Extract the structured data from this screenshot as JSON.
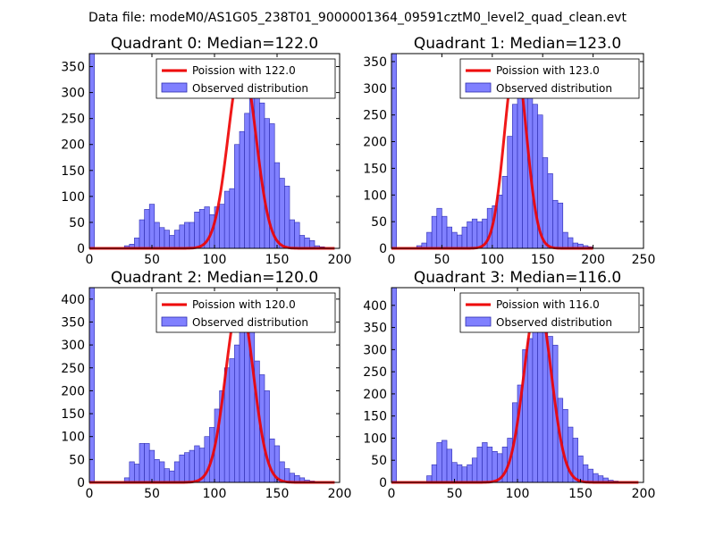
{
  "figure": {
    "suptitle": "Data file: modeM0/AS1G05_238T01_9000001364_09591cztM0_level2_quad_clean.evt"
  },
  "colors": {
    "bar_fill": "#8080ff",
    "bar_edge": "#2b2bb0",
    "curve": "#ee0000"
  },
  "chart_data": [
    {
      "type": "bar",
      "title": "Quadrant 0: Median=122.0",
      "bin_width": 4,
      "xlim": [
        0,
        200
      ],
      "ylim": [
        0,
        375
      ],
      "xticks": [
        0,
        50,
        100,
        150,
        200
      ],
      "yticks": [
        0,
        50,
        100,
        150,
        200,
        250,
        300,
        350
      ],
      "bars": [
        [
          0,
          375
        ],
        [
          28,
          5
        ],
        [
          32,
          8
        ],
        [
          36,
          20
        ],
        [
          40,
          55
        ],
        [
          44,
          75
        ],
        [
          48,
          85
        ],
        [
          52,
          50
        ],
        [
          56,
          40
        ],
        [
          60,
          35
        ],
        [
          64,
          25
        ],
        [
          68,
          35
        ],
        [
          72,
          45
        ],
        [
          76,
          50
        ],
        [
          80,
          50
        ],
        [
          84,
          70
        ],
        [
          88,
          75
        ],
        [
          92,
          80
        ],
        [
          96,
          65
        ],
        [
          100,
          80
        ],
        [
          104,
          85
        ],
        [
          108,
          110
        ],
        [
          112,
          115
        ],
        [
          116,
          200
        ],
        [
          120,
          225
        ],
        [
          124,
          260
        ],
        [
          128,
          340
        ],
        [
          132,
          345
        ],
        [
          136,
          280
        ],
        [
          140,
          250
        ],
        [
          144,
          240
        ],
        [
          148,
          165
        ],
        [
          152,
          135
        ],
        [
          156,
          120
        ],
        [
          160,
          55
        ],
        [
          164,
          50
        ],
        [
          168,
          25
        ],
        [
          172,
          20
        ],
        [
          176,
          15
        ],
        [
          180,
          5
        ],
        [
          184,
          3
        ]
      ],
      "curve": {
        "label": "Poission with 122.0",
        "mean": 122,
        "peak": 360,
        "x_range": [
          0,
          196
        ]
      },
      "legend": {
        "bar_label": "Observed distribution",
        "loc": "upper right"
      }
    },
    {
      "type": "bar",
      "title": "Quadrant 1: Median=123.0",
      "bin_width": 5,
      "xlim": [
        0,
        250
      ],
      "ylim": [
        0,
        365
      ],
      "xticks": [
        0,
        50,
        100,
        150,
        200,
        250
      ],
      "yticks": [
        0,
        50,
        100,
        150,
        200,
        250,
        300,
        350
      ],
      "bars": [
        [
          0,
          365
        ],
        [
          25,
          5
        ],
        [
          30,
          10
        ],
        [
          35,
          30
        ],
        [
          40,
          60
        ],
        [
          45,
          75
        ],
        [
          50,
          60
        ],
        [
          55,
          40
        ],
        [
          60,
          30
        ],
        [
          65,
          25
        ],
        [
          70,
          40
        ],
        [
          75,
          50
        ],
        [
          80,
          55
        ],
        [
          85,
          50
        ],
        [
          90,
          55
        ],
        [
          95,
          75
        ],
        [
          100,
          80
        ],
        [
          105,
          100
        ],
        [
          110,
          135
        ],
        [
          115,
          210
        ],
        [
          120,
          270
        ],
        [
          125,
          320
        ],
        [
          130,
          345
        ],
        [
          135,
          300
        ],
        [
          140,
          270
        ],
        [
          145,
          250
        ],
        [
          150,
          170
        ],
        [
          155,
          140
        ],
        [
          160,
          90
        ],
        [
          165,
          85
        ],
        [
          170,
          30
        ],
        [
          175,
          20
        ],
        [
          180,
          10
        ],
        [
          185,
          8
        ],
        [
          190,
          5
        ],
        [
          195,
          3
        ]
      ],
      "curve": {
        "label": "Poission with 123.0",
        "mean": 123,
        "peak": 350,
        "x_range": [
          0,
          200
        ]
      },
      "legend": {
        "bar_label": "Observed distribution",
        "loc": "upper right"
      }
    },
    {
      "type": "bar",
      "title": "Quadrant 2: Median=120.0",
      "bin_width": 4,
      "xlim": [
        0,
        200
      ],
      "ylim": [
        0,
        425
      ],
      "xticks": [
        0,
        50,
        100,
        150,
        200
      ],
      "yticks": [
        0,
        50,
        100,
        150,
        200,
        250,
        300,
        350,
        400
      ],
      "bars": [
        [
          0,
          425
        ],
        [
          28,
          10
        ],
        [
          32,
          45
        ],
        [
          36,
          40
        ],
        [
          40,
          85
        ],
        [
          44,
          85
        ],
        [
          48,
          70
        ],
        [
          52,
          50
        ],
        [
          56,
          45
        ],
        [
          60,
          30
        ],
        [
          64,
          25
        ],
        [
          68,
          45
        ],
        [
          72,
          60
        ],
        [
          76,
          65
        ],
        [
          80,
          70
        ],
        [
          84,
          80
        ],
        [
          88,
          75
        ],
        [
          92,
          100
        ],
        [
          96,
          120
        ],
        [
          100,
          160
        ],
        [
          104,
          200
        ],
        [
          108,
          250
        ],
        [
          112,
          270
        ],
        [
          116,
          300
        ],
        [
          120,
          385
        ],
        [
          124,
          360
        ],
        [
          128,
          335
        ],
        [
          132,
          265
        ],
        [
          136,
          235
        ],
        [
          140,
          200
        ],
        [
          144,
          95
        ],
        [
          148,
          80
        ],
        [
          152,
          45
        ],
        [
          156,
          30
        ],
        [
          160,
          20
        ],
        [
          164,
          15
        ],
        [
          168,
          10
        ],
        [
          172,
          5
        ],
        [
          176,
          3
        ]
      ],
      "curve": {
        "label": "Poission with 120.0",
        "mean": 120,
        "peak": 398,
        "x_range": [
          0,
          196
        ]
      },
      "legend": {
        "bar_label": "Observed distribution",
        "loc": "upper right"
      }
    },
    {
      "type": "bar",
      "title": "Quadrant 3: Median=116.0",
      "bin_width": 4,
      "xlim": [
        0,
        200
      ],
      "ylim": [
        0,
        440
      ],
      "xticks": [
        0,
        50,
        100,
        150,
        200
      ],
      "yticks": [
        0,
        50,
        100,
        150,
        200,
        250,
        300,
        350,
        400
      ],
      "bars": [
        [
          0,
          440
        ],
        [
          28,
          15
        ],
        [
          32,
          40
        ],
        [
          36,
          90
        ],
        [
          40,
          95
        ],
        [
          44,
          75
        ],
        [
          48,
          45
        ],
        [
          52,
          40
        ],
        [
          56,
          35
        ],
        [
          60,
          40
        ],
        [
          64,
          55
        ],
        [
          68,
          80
        ],
        [
          72,
          90
        ],
        [
          76,
          80
        ],
        [
          80,
          70
        ],
        [
          84,
          65
        ],
        [
          88,
          80
        ],
        [
          92,
          100
        ],
        [
          96,
          180
        ],
        [
          100,
          220
        ],
        [
          104,
          300
        ],
        [
          108,
          325
        ],
        [
          112,
          385
        ],
        [
          116,
          410
        ],
        [
          120,
          405
        ],
        [
          124,
          330
        ],
        [
          128,
          310
        ],
        [
          132,
          190
        ],
        [
          136,
          165
        ],
        [
          140,
          125
        ],
        [
          144,
          100
        ],
        [
          148,
          60
        ],
        [
          152,
          40
        ],
        [
          156,
          30
        ],
        [
          160,
          20
        ],
        [
          164,
          15
        ],
        [
          168,
          10
        ],
        [
          172,
          5
        ],
        [
          176,
          3
        ]
      ],
      "curve": {
        "label": "Poission with 116.0",
        "mean": 116,
        "peak": 410,
        "x_range": [
          0,
          196
        ]
      },
      "legend": {
        "bar_label": "Observed distribution",
        "loc": "upper right"
      }
    }
  ]
}
